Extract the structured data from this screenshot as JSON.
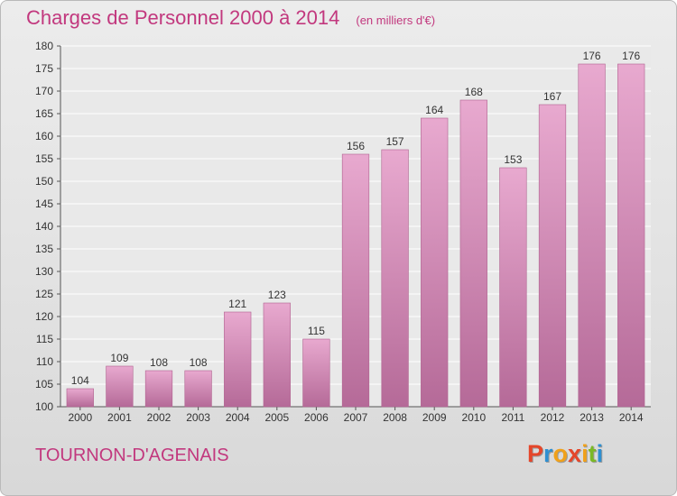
{
  "header": {
    "title": "Charges de Personnel 2000 à 2014",
    "unit": "(en milliers d'€)"
  },
  "footer": {
    "city": "TOURNON-D'AGENAIS",
    "brand": "Proxiti",
    "brand_colors": [
      "#e5462a",
      "#2f8fd1",
      "#f0a11a",
      "#e5462a",
      "#f0a11a",
      "#7bb927",
      "#2f8fd1"
    ]
  },
  "chart_data": {
    "type": "bar",
    "categories": [
      "2000",
      "2001",
      "2002",
      "2003",
      "2004",
      "2005",
      "2006",
      "2007",
      "2008",
      "2009",
      "2010",
      "2011",
      "2012",
      "2013",
      "2014"
    ],
    "values": [
      104,
      109,
      108,
      108,
      121,
      123,
      115,
      156,
      157,
      164,
      168,
      153,
      167,
      176,
      176
    ],
    "title": "Charges de Personnel 2000 à 2014",
    "ylim": [
      100,
      180
    ],
    "yticks": [
      100,
      105,
      110,
      115,
      120,
      125,
      130,
      135,
      140,
      145,
      150,
      155,
      160,
      165,
      170,
      175,
      180
    ],
    "grid": true,
    "data_labels": true,
    "bar_color": "#d88fb8"
  }
}
